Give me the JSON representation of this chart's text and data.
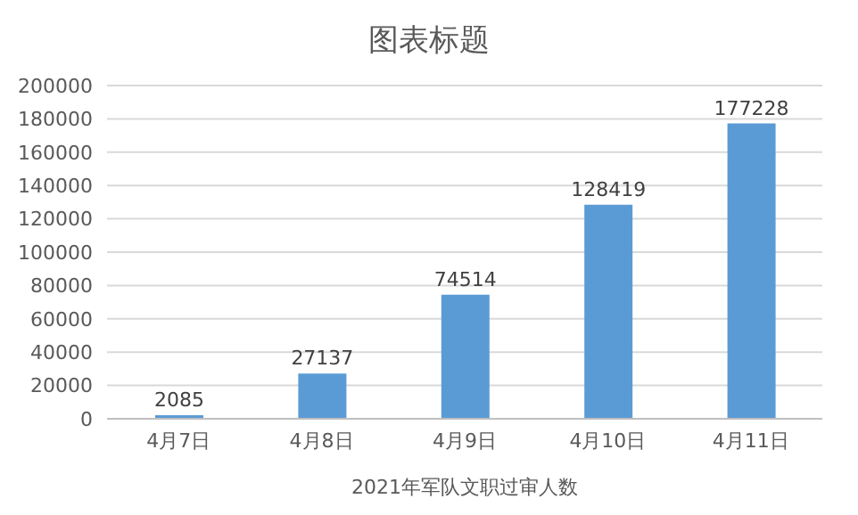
{
  "chart_data": {
    "type": "bar",
    "title": "图表标题",
    "xlabel": "2021年军队文职过审人数",
    "categories": [
      "4月7日",
      "4月8日",
      "4月9日",
      "4月10日",
      "4月11日"
    ],
    "values": [
      2085,
      27137,
      74514,
      128419,
      177228
    ],
    "color": "#5b9bd5",
    "ylim": [
      0,
      200000
    ],
    "yticks": [
      0,
      20000,
      40000,
      60000,
      80000,
      100000,
      120000,
      140000,
      160000,
      180000,
      200000
    ],
    "grid": "y",
    "data_labels": true,
    "legend": false
  }
}
